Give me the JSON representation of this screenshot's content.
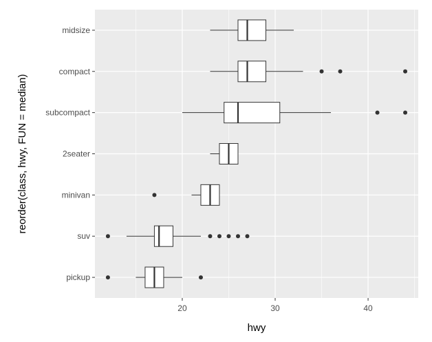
{
  "chart_data": {
    "type": "boxplot",
    "orientation": "horizontal",
    "xlabel": "hwy",
    "ylabel": "reorder(class, hwy, FUN = median)",
    "xlim": [
      10.6,
      45.4
    ],
    "x_ticks": [
      20,
      30,
      40
    ],
    "x_minor_ticks": [
      15,
      25,
      35,
      45
    ],
    "grid": true,
    "panel_background": "#ebebeb",
    "grid_color": "#ffffff",
    "box_fill": "#ffffff",
    "box_stroke": "#333333",
    "outlier_color": "#333333",
    "categories": [
      "pickup",
      "suv",
      "minivan",
      "2seater",
      "subcompact",
      "compact",
      "midsize"
    ],
    "boxes": [
      {
        "category": "pickup",
        "whisker_low": 15,
        "q1": 16,
        "median": 17,
        "q3": 18,
        "whisker_high": 20,
        "outliers": [
          12,
          22
        ]
      },
      {
        "category": "suv",
        "whisker_low": 14,
        "q1": 17,
        "median": 17.5,
        "q3": 19,
        "whisker_high": 22,
        "outliers": [
          12,
          23,
          24,
          25,
          26,
          27
        ]
      },
      {
        "category": "minivan",
        "whisker_low": 21,
        "q1": 22,
        "median": 23,
        "q3": 24,
        "whisker_high": 24,
        "outliers": [
          17
        ]
      },
      {
        "category": "2seater",
        "whisker_low": 23,
        "q1": 24,
        "median": 25,
        "q3": 26,
        "whisker_high": 26,
        "outliers": []
      },
      {
        "category": "subcompact",
        "whisker_low": 20,
        "q1": 24.5,
        "median": 26,
        "q3": 30.5,
        "whisker_high": 36,
        "outliers": [
          41,
          44
        ]
      },
      {
        "category": "compact",
        "whisker_low": 23,
        "q1": 26,
        "median": 27,
        "q3": 29,
        "whisker_high": 33,
        "outliers": [
          35,
          37,
          44
        ]
      },
      {
        "category": "midsize",
        "whisker_low": 23,
        "q1": 26,
        "median": 27,
        "q3": 29,
        "whisker_high": 32,
        "outliers": []
      }
    ]
  }
}
